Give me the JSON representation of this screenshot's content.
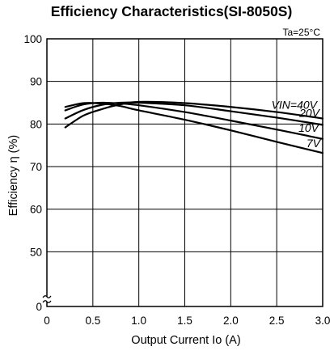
{
  "chart_data": {
    "type": "line",
    "title": "Efficiency Characteristics(SI-8050S)",
    "xlabel": "Output Current Io (A)",
    "ylabel": "Efficiency η (%)",
    "condition": "Ta=25°C",
    "xlim": [
      0,
      3.0
    ],
    "ylim": [
      0,
      100
    ],
    "y_axis_break": true,
    "x_ticks": [
      "0",
      "0.5",
      "1.0",
      "1.5",
      "2.0",
      "2.5",
      "3.0"
    ],
    "y_ticks": [
      "0",
      "50",
      "60",
      "70",
      "80",
      "90",
      "100"
    ],
    "grid": true,
    "series": [
      {
        "name": "VIN=40V",
        "x": [
          0.2,
          0.4,
          0.6,
          0.8,
          1.0,
          1.5,
          2.0,
          2.5,
          3.0
        ],
        "y": [
          79.2,
          82.0,
          83.5,
          84.6,
          85.2,
          84.9,
          84.0,
          82.8,
          81.3
        ]
      },
      {
        "name": "20V",
        "x": [
          0.2,
          0.4,
          0.6,
          0.8,
          1.0,
          1.5,
          2.0,
          2.5,
          3.0
        ],
        "y": [
          81.3,
          83.3,
          84.5,
          85.0,
          85.0,
          84.4,
          83.0,
          81.5,
          79.8
        ]
      },
      {
        "name": "10V",
        "x": [
          0.2,
          0.4,
          0.6,
          0.8,
          1.0,
          1.5,
          2.0,
          2.5,
          3.0
        ],
        "y": [
          83.2,
          84.6,
          85.0,
          84.8,
          84.4,
          82.8,
          80.8,
          78.7,
          76.5
        ]
      },
      {
        "name": "7V",
        "x": [
          0.2,
          0.4,
          0.6,
          0.8,
          1.0,
          1.5,
          2.0,
          2.5,
          3.0
        ],
        "y": [
          84.0,
          84.9,
          84.8,
          84.2,
          83.2,
          81.0,
          78.5,
          75.8,
          73.2
        ]
      }
    ]
  }
}
